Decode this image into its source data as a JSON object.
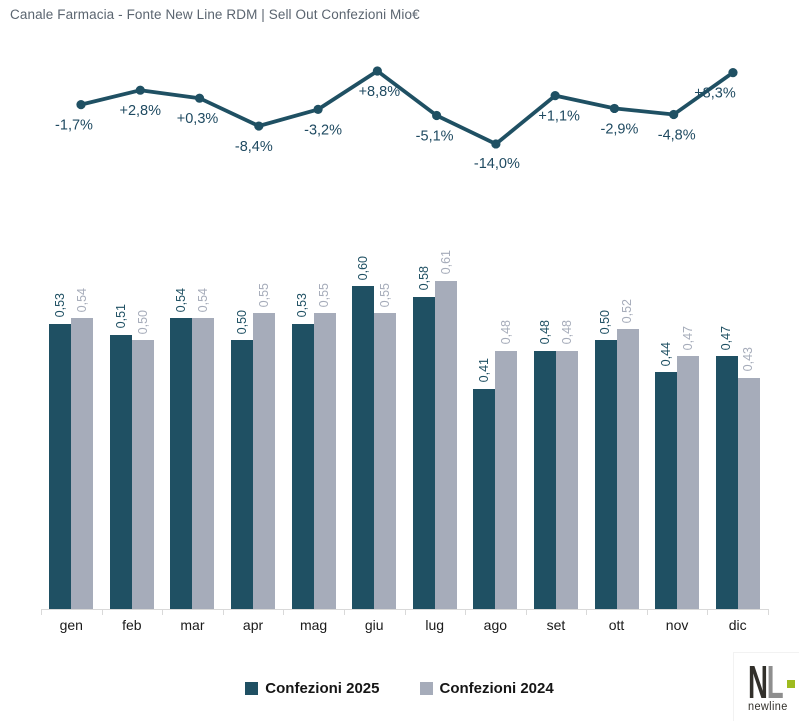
{
  "title": "Canale Farmacia - Fonte New Line RDM | Sell Out Confezioni Mio€",
  "chart_data": [
    {
      "type": "line",
      "name": "delta-percent-2025-vs-2024",
      "x": [
        "gen",
        "feb",
        "mar",
        "apr",
        "mag",
        "giu",
        "lug",
        "ago",
        "set",
        "ott",
        "nov",
        "dic"
      ],
      "values": [
        -1.7,
        2.8,
        0.3,
        -8.4,
        -3.2,
        8.8,
        -5.1,
        -14.0,
        1.1,
        -2.9,
        -4.8,
        8.3
      ],
      "point_labels": [
        "-1,7%",
        "+2,8%",
        "+0,3%",
        "-8,4%",
        "-3,2%",
        "+8,8%",
        "-5,1%",
        "-14,0%",
        "+1,1%",
        "-2,9%",
        "-4,8%",
        "+8,3%"
      ],
      "color": "#1f5063",
      "label_color": "#1f4a61",
      "markers": true,
      "grid": false,
      "axes_visible": false
    },
    {
      "type": "bar",
      "categories": [
        "gen",
        "feb",
        "mar",
        "apr",
        "mag",
        "giu",
        "lug",
        "ago",
        "set",
        "ott",
        "nov",
        "dic"
      ],
      "series": [
        {
          "name": "Confezioni 2025",
          "color": "#1f5063",
          "values": [
            0.53,
            0.51,
            0.54,
            0.5,
            0.53,
            0.6,
            0.58,
            0.41,
            0.48,
            0.5,
            0.44,
            0.47
          ],
          "data_labels": [
            "0,53",
            "0,51",
            "0,54",
            "0,50",
            "0,53",
            "0,60",
            "0,58",
            "0,41",
            "0,48",
            "0,50",
            "0,44",
            "0,47"
          ]
        },
        {
          "name": "Confezioni 2024",
          "color": "#a6acba",
          "values": [
            0.54,
            0.5,
            0.54,
            0.55,
            0.55,
            0.55,
            0.61,
            0.48,
            0.48,
            0.52,
            0.47,
            0.43
          ],
          "data_labels": [
            "0,54",
            "0,50",
            "0,54",
            "0,55",
            "0,55",
            "0,55",
            "0,61",
            "0,48",
            "0,48",
            "0,52",
            "0,47",
            "0,43"
          ]
        }
      ],
      "ylim": [
        0,
        0.72
      ],
      "grid": false,
      "value_axis_visible": false,
      "legend_position": "bottom",
      "axis_color": "#d9d9d9"
    }
  ],
  "legend": {
    "items": [
      {
        "label": "Confezioni 2025",
        "color": "#1f5063"
      },
      {
        "label": "Confezioni 2024",
        "color": "#a6acba"
      }
    ]
  },
  "logo": {
    "mark_n": "N",
    "mark_l": "L",
    "name": "newline",
    "accent_color": "#9ebb1f"
  }
}
